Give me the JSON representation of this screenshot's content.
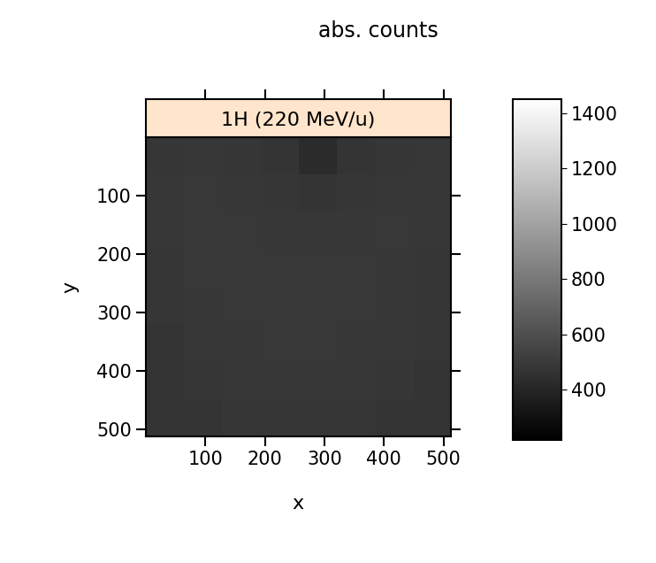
{
  "chart_data": {
    "type": "heatmap",
    "title": "1H (220 MeV/u)",
    "colorbar_title": "abs. counts",
    "x_label": "x",
    "y_label": "y",
    "xlim": [
      0,
      512
    ],
    "ylim": [
      512,
      0
    ],
    "xticks": [
      100,
      200,
      300,
      400,
      500
    ],
    "yticks": [
      100,
      200,
      300,
      400,
      500
    ],
    "cells": [
      [
        480,
        485,
        480,
        470,
        430,
        470,
        480,
        485
      ],
      [
        485,
        490,
        485,
        480,
        475,
        480,
        485,
        485
      ],
      [
        485,
        490,
        490,
        485,
        485,
        485,
        490,
        485
      ],
      [
        480,
        490,
        490,
        490,
        490,
        490,
        485,
        480
      ],
      [
        480,
        485,
        490,
        490,
        490,
        490,
        485,
        480
      ],
      [
        475,
        485,
        485,
        490,
        490,
        485,
        485,
        480
      ],
      [
        475,
        480,
        485,
        485,
        485,
        485,
        480,
        475
      ],
      [
        470,
        475,
        480,
        480,
        480,
        480,
        475,
        470
      ]
    ],
    "colorbar_lim": [
      220,
      1450
    ],
    "colorbar_ticks": [
      400,
      600,
      800,
      1000,
      1200,
      1400
    ],
    "color": "gray"
  }
}
